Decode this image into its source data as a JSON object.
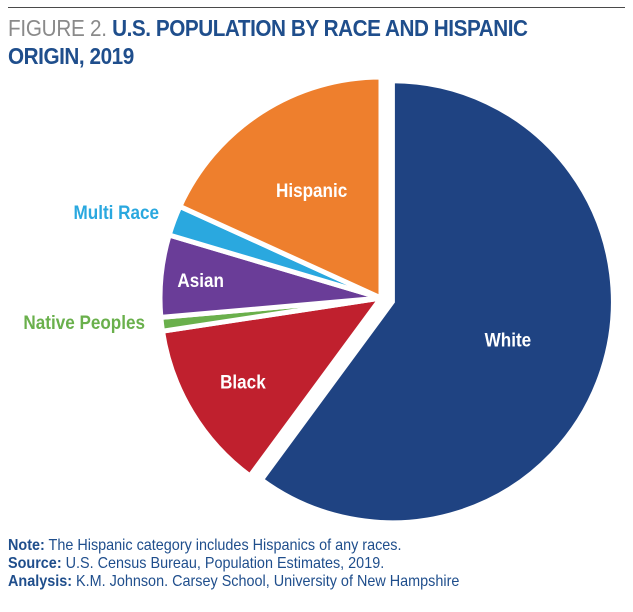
{
  "figure": {
    "number_label": "FIGURE 2.",
    "title": "U.S. POPULATION BY RACE AND HISPANIC ORIGIN, 2019"
  },
  "chart_data": {
    "type": "pie",
    "title": "U.S. POPULATION BY RACE AND HISPANIC ORIGIN, 2019",
    "slices": [
      {
        "label": "White",
        "value": 60.1,
        "color": "#1f4382",
        "label_color": "#ffffff",
        "exploded": true
      },
      {
        "label": "Black",
        "value": 12.5,
        "color": "#c0202e",
        "label_color": "#ffffff",
        "exploded": false
      },
      {
        "label": "Native Peoples",
        "value": 1.0,
        "color": "#6ab04c",
        "label_color": "#6ab04c",
        "exploded": false
      },
      {
        "label": "Asian",
        "value": 6.0,
        "color": "#6a3d98",
        "label_color": "#ffffff",
        "exploded": false
      },
      {
        "label": "Multi Race",
        "value": 2.2,
        "color": "#2aa8df",
        "label_color": "#2aa8df",
        "exploded": false
      },
      {
        "label": "Hispanic",
        "value": 18.2,
        "color": "#ee7f2d",
        "label_color": "#ffffff",
        "exploded": false
      }
    ],
    "legend": "none"
  },
  "notes": {
    "note_label": "Note:",
    "note_text": "The Hispanic category includes Hispanics of any races.",
    "source_label": "Source:",
    "source_text": "U.S. Census Bureau, Population Estimates, 2019.",
    "analysis_label": "Analysis:",
    "analysis_text": "K.M. Johnson. Carsey School, University of New Hampshire"
  }
}
